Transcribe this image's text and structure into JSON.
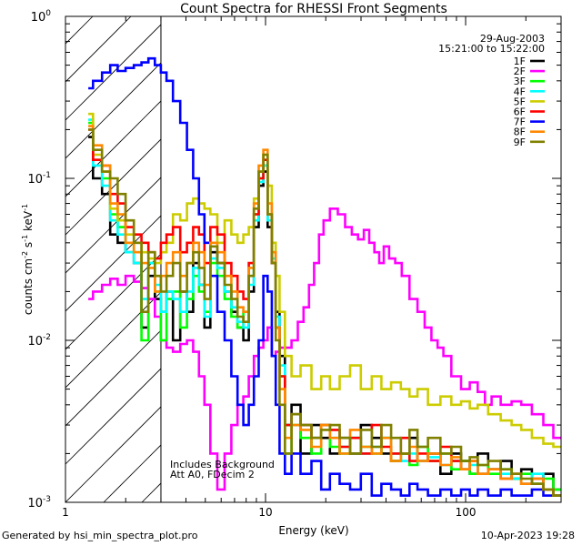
{
  "footer": {
    "generator": "Generated by hsi_min_spectra_plot.pro",
    "timestamp": "10-Apr-2023 19:28"
  },
  "chart_data": {
    "type": "line",
    "title": "Count Spectra for RHESSI Front Segments",
    "xlabel": "Energy (keV)",
    "ylabel": "counts cm-2 s-1 keV-1",
    "xscale": "log",
    "yscale": "log",
    "xlim": [
      1,
      300
    ],
    "ylim": [
      0.001,
      1
    ],
    "x_ticks": [
      {
        "value": 1,
        "label": "1"
      },
      {
        "value": 10,
        "label": "10"
      },
      {
        "value": 100,
        "label": "100"
      }
    ],
    "y_ticks": [
      {
        "value": 1,
        "label": "10^0"
      },
      {
        "value": 0.1,
        "label": "10^-1"
      },
      {
        "value": 0.01,
        "label": "10^-2"
      },
      {
        "value": 0.001,
        "label": "10^-3"
      }
    ],
    "date": "29-Aug-2003",
    "time_range": "15:21:00 to 15:22:00",
    "annotations": [
      "Includes Background",
      "Att A0, FDecim 2"
    ],
    "excluded_region": {
      "from_kev": 1,
      "to_kev": 3,
      "style": "hatched"
    },
    "legend_position": "top-right",
    "series": [
      {
        "name": "1F",
        "color": "#000000",
        "x": [
          1.3,
          1.45,
          1.6,
          1.75,
          1.9,
          2.1,
          2.3,
          2.5,
          2.7,
          2.9,
          3.1,
          3.3,
          3.6,
          3.9,
          4.2,
          4.5,
          4.8,
          5.1,
          5.5,
          6,
          6.5,
          7,
          7.5,
          8,
          8.5,
          9,
          9.5,
          10,
          10.5,
          11,
          11.5,
          12,
          13,
          14,
          16,
          18,
          20,
          22,
          25,
          28,
          32,
          36,
          40,
          45,
          50,
          55,
          60,
          70,
          80,
          90,
          100,
          110,
          120,
          140,
          160,
          180,
          200,
          230,
          260,
          290
        ],
        "y": [
          0.18,
          0.1,
          0.08,
          0.045,
          0.04,
          0.035,
          0.03,
          0.012,
          0.025,
          0.018,
          0.015,
          0.02,
          0.01,
          0.02,
          0.015,
          0.03,
          0.022,
          0.012,
          0.035,
          0.03,
          0.02,
          0.015,
          0.012,
          0.01,
          0.02,
          0.05,
          0.09,
          0.11,
          0.05,
          0.03,
          0.015,
          0.008,
          0.003,
          0.004,
          0.002,
          0.003,
          0.0025,
          0.002,
          0.0025,
          0.002,
          0.003,
          0.0025,
          0.002,
          0.0018,
          0.002,
          0.0025,
          0.0018,
          0.002,
          0.0015,
          0.002,
          0.0018,
          0.0015,
          0.002,
          0.0016,
          0.0018,
          0.0014,
          0.0016,
          0.0013,
          0.0015,
          0.0012
        ]
      },
      {
        "name": "2F",
        "color": "#ff00ff",
        "x": [
          1.3,
          1.45,
          1.6,
          1.75,
          1.9,
          2.1,
          2.3,
          2.5,
          2.7,
          2.9,
          3.1,
          3.3,
          3.6,
          3.9,
          4.2,
          4.5,
          4.8,
          5.1,
          5.5,
          6,
          6.5,
          7,
          7.5,
          8,
          8.5,
          9,
          9.5,
          10,
          10.5,
          11,
          11.5,
          12,
          13,
          14,
          15,
          16,
          17,
          18,
          19,
          20,
          22,
          24,
          26,
          28,
          30,
          32,
          34,
          36,
          38,
          40,
          43,
          46,
          50,
          55,
          60,
          65,
          70,
          75,
          80,
          90,
          100,
          110,
          120,
          130,
          140,
          160,
          180,
          200,
          230,
          260,
          290
        ],
        "y": [
          0.018,
          0.02,
          0.022,
          0.024,
          0.022,
          0.025,
          0.023,
          0.021,
          0.018,
          0.014,
          0.01,
          0.009,
          0.0085,
          0.0095,
          0.01,
          0.0085,
          0.006,
          0.004,
          0.002,
          0.0012,
          0.002,
          0.003,
          0.004,
          0.0045,
          0.006,
          0.008,
          0.009,
          0.01,
          0.012,
          0.008,
          0.0085,
          0.009,
          0.009,
          0.01,
          0.013,
          0.016,
          0.022,
          0.03,
          0.045,
          0.055,
          0.065,
          0.06,
          0.05,
          0.045,
          0.042,
          0.048,
          0.04,
          0.035,
          0.03,
          0.038,
          0.032,
          0.03,
          0.025,
          0.018,
          0.015,
          0.012,
          0.01,
          0.009,
          0.008,
          0.006,
          0.005,
          0.0055,
          0.0048,
          0.004,
          0.0045,
          0.004,
          0.0042,
          0.004,
          0.0035,
          0.003,
          0.0025
        ]
      },
      {
        "name": "3F",
        "color": "#00ff00",
        "x": [
          1.3,
          1.45,
          1.6,
          1.75,
          1.9,
          2.1,
          2.3,
          2.5,
          2.7,
          2.9,
          3.1,
          3.3,
          3.6,
          3.9,
          4.2,
          4.5,
          4.8,
          5.1,
          5.5,
          6,
          6.5,
          7,
          7.5,
          8,
          8.5,
          9,
          9.5,
          10,
          10.5,
          11,
          11.5,
          12,
          13,
          14,
          16,
          18,
          20,
          22,
          25,
          28,
          32,
          36,
          40,
          45,
          50,
          55,
          60,
          70,
          80,
          90,
          100,
          110,
          120,
          140,
          160,
          180,
          200,
          230,
          260,
          290
        ],
        "y": [
          0.22,
          0.13,
          0.1,
          0.06,
          0.05,
          0.04,
          0.035,
          0.01,
          0.03,
          0.02,
          0.01,
          0.018,
          0.02,
          0.012,
          0.018,
          0.025,
          0.02,
          0.015,
          0.03,
          0.025,
          0.018,
          0.014,
          0.012,
          0.015,
          0.025,
          0.06,
          0.1,
          0.12,
          0.06,
          0.035,
          0.012,
          0.006,
          0.002,
          0.003,
          0.0025,
          0.002,
          0.003,
          0.0022,
          0.002,
          0.0025,
          0.0022,
          0.002,
          0.0025,
          0.0018,
          0.002,
          0.0017,
          0.0022,
          0.0018,
          0.002,
          0.0016,
          0.0018,
          0.0015,
          0.0017,
          0.0015,
          0.0016,
          0.0014,
          0.0015,
          0.0013,
          0.0014,
          0.0012
        ]
      },
      {
        "name": "4F",
        "color": "#00ffff",
        "x": [
          1.3,
          1.45,
          1.6,
          1.75,
          1.9,
          2.1,
          2.3,
          2.5,
          2.7,
          2.9,
          3.1,
          3.3,
          3.6,
          3.9,
          4.2,
          4.5,
          4.8,
          5.1,
          5.5,
          6,
          6.5,
          7,
          7.5,
          8,
          8.5,
          9,
          9.5,
          10,
          10.5,
          11,
          11.5,
          12,
          13,
          14,
          16,
          18,
          20,
          22,
          25,
          28,
          32,
          36,
          40,
          45,
          50,
          55,
          60,
          70,
          80,
          90,
          100,
          110,
          120,
          140,
          160,
          180,
          200,
          230,
          260,
          290
        ],
        "y": [
          0.23,
          0.12,
          0.09,
          0.055,
          0.045,
          0.035,
          0.03,
          0.018,
          0.03,
          0.022,
          0.015,
          0.02,
          0.018,
          0.015,
          0.02,
          0.028,
          0.022,
          0.014,
          0.032,
          0.028,
          0.02,
          0.016,
          0.013,
          0.012,
          0.022,
          0.055,
          0.095,
          0.12,
          0.055,
          0.032,
          0.014,
          0.007,
          0.003,
          0.0035,
          0.003,
          0.0025,
          0.003,
          0.0025,
          0.0022,
          0.0025,
          0.002,
          0.0022,
          0.0025,
          0.002,
          0.0018,
          0.002,
          0.0018,
          0.0019,
          0.0017,
          0.0018,
          0.0016,
          0.0017,
          0.0015,
          0.0016,
          0.0015,
          0.0014,
          0.0013,
          0.0015,
          0.0012,
          0.0011
        ]
      },
      {
        "name": "5F",
        "color": "#cccc00",
        "x": [
          1.3,
          1.45,
          1.6,
          1.75,
          1.9,
          2.1,
          2.3,
          2.5,
          2.7,
          2.9,
          3.1,
          3.3,
          3.6,
          3.9,
          4.2,
          4.5,
          4.8,
          5.1,
          5.5,
          6,
          6.5,
          7,
          7.5,
          8,
          8.5,
          9,
          9.5,
          10,
          10.5,
          11,
          11.5,
          12,
          13,
          14,
          16,
          18,
          20,
          22,
          25,
          28,
          32,
          36,
          40,
          45,
          50,
          55,
          60,
          70,
          80,
          90,
          100,
          110,
          120,
          140,
          160,
          180,
          200,
          230,
          260,
          290
        ],
        "y": [
          0.25,
          0.14,
          0.11,
          0.065,
          0.055,
          0.045,
          0.04,
          0.035,
          0.032,
          0.03,
          0.035,
          0.04,
          0.06,
          0.055,
          0.07,
          0.075,
          0.07,
          0.065,
          0.06,
          0.04,
          0.055,
          0.045,
          0.04,
          0.045,
          0.05,
          0.075,
          0.11,
          0.14,
          0.09,
          0.04,
          0.025,
          0.015,
          0.008,
          0.006,
          0.007,
          0.005,
          0.006,
          0.005,
          0.006,
          0.007,
          0.005,
          0.006,
          0.005,
          0.0055,
          0.005,
          0.0045,
          0.005,
          0.004,
          0.0045,
          0.004,
          0.0042,
          0.0038,
          0.004,
          0.0035,
          0.0032,
          0.003,
          0.0028,
          0.0025,
          0.0023,
          0.0022
        ]
      },
      {
        "name": "6F",
        "color": "#ff0000",
        "x": [
          1.3,
          1.45,
          1.6,
          1.75,
          1.9,
          2.1,
          2.3,
          2.5,
          2.7,
          2.9,
          3.1,
          3.3,
          3.6,
          3.9,
          4.2,
          4.5,
          4.8,
          5.1,
          5.5,
          6,
          6.5,
          7,
          7.5,
          8,
          8.5,
          9,
          9.5,
          10,
          10.5,
          11,
          11.5,
          12,
          13,
          14,
          16,
          18,
          20,
          22,
          25,
          28,
          32,
          36,
          40,
          45,
          50,
          55,
          60,
          70,
          80,
          90,
          100,
          110,
          120,
          140,
          160,
          180,
          200,
          230,
          260,
          290
        ],
        "y": [
          0.2,
          0.13,
          0.12,
          0.08,
          0.07,
          0.05,
          0.045,
          0.04,
          0.035,
          0.032,
          0.04,
          0.045,
          0.05,
          0.035,
          0.04,
          0.05,
          0.045,
          0.03,
          0.05,
          0.045,
          0.03,
          0.025,
          0.02,
          0.018,
          0.03,
          0.06,
          0.1,
          0.13,
          0.06,
          0.03,
          0.012,
          0.006,
          0.003,
          0.0035,
          0.003,
          0.0025,
          0.003,
          0.0028,
          0.0022,
          0.0025,
          0.002,
          0.003,
          0.0022,
          0.002,
          0.0025,
          0.0018,
          0.002,
          0.0018,
          0.0022,
          0.0018,
          0.0016,
          0.0018,
          0.0015,
          0.0016,
          0.0014,
          0.0015,
          0.0013,
          0.0014,
          0.0012,
          0.0011
        ]
      },
      {
        "name": "7F",
        "color": "#0000ff",
        "x": [
          1.3,
          1.45,
          1.6,
          1.75,
          1.9,
          2.1,
          2.3,
          2.5,
          2.7,
          2.9,
          3.1,
          3.3,
          3.6,
          3.9,
          4.2,
          4.5,
          4.8,
          5.1,
          5.5,
          6,
          6.5,
          7,
          7.5,
          8,
          8.5,
          9,
          9.5,
          10,
          10.5,
          11,
          11.5,
          12,
          13,
          14,
          16,
          18,
          20,
          22,
          25,
          28,
          32,
          36,
          40,
          45,
          50,
          55,
          60,
          70,
          80,
          90,
          100,
          110,
          120,
          140,
          160,
          180,
          200,
          230,
          260,
          290
        ],
        "y": [
          0.36,
          0.4,
          0.45,
          0.5,
          0.46,
          0.48,
          0.5,
          0.52,
          0.55,
          0.5,
          0.45,
          0.4,
          0.3,
          0.22,
          0.15,
          0.1,
          0.06,
          0.04,
          0.025,
          0.015,
          0.01,
          0.006,
          0.004,
          0.003,
          0.004,
          0.006,
          0.01,
          0.025,
          0.02,
          0.008,
          0.004,
          0.002,
          0.0015,
          0.002,
          0.0015,
          0.0018,
          0.0012,
          0.0015,
          0.0013,
          0.0012,
          0.0015,
          0.0011,
          0.0013,
          0.0012,
          0.0011,
          0.0013,
          0.0012,
          0.0011,
          0.0012,
          0.0011,
          0.0012,
          0.0011,
          0.0012,
          0.0011,
          0.0012,
          0.0011,
          0.0011,
          0.0012,
          0.0011,
          0.0011
        ]
      },
      {
        "name": "8F",
        "color": "#ff8800",
        "x": [
          1.3,
          1.45,
          1.6,
          1.75,
          1.9,
          2.1,
          2.3,
          2.5,
          2.7,
          2.9,
          3.1,
          3.3,
          3.6,
          3.9,
          4.2,
          4.5,
          4.8,
          5.1,
          5.5,
          6,
          6.5,
          7,
          7.5,
          8,
          8.5,
          9,
          9.5,
          10,
          10.5,
          11,
          11.5,
          12,
          13,
          14,
          16,
          18,
          20,
          22,
          25,
          28,
          32,
          36,
          40,
          45,
          50,
          55,
          60,
          70,
          80,
          90,
          100,
          110,
          120,
          140,
          160,
          180,
          200,
          230,
          260,
          290
        ],
        "y": [
          0.21,
          0.16,
          0.12,
          0.07,
          0.06,
          0.04,
          0.035,
          0.03,
          0.028,
          0.02,
          0.025,
          0.03,
          0.035,
          0.025,
          0.03,
          0.04,
          0.035,
          0.022,
          0.04,
          0.035,
          0.025,
          0.02,
          0.016,
          0.015,
          0.028,
          0.07,
          0.12,
          0.15,
          0.07,
          0.035,
          0.012,
          0.005,
          0.0025,
          0.003,
          0.0028,
          0.0022,
          0.003,
          0.0025,
          0.002,
          0.0028,
          0.0022,
          0.002,
          0.0025,
          0.0018,
          0.002,
          0.0022,
          0.0018,
          0.002,
          0.0017,
          0.0019,
          0.0016,
          0.0018,
          0.0015,
          0.0016,
          0.0014,
          0.0015,
          0.0013,
          0.0014,
          0.0012,
          0.0011
        ]
      },
      {
        "name": "9F",
        "color": "#808000",
        "x": [
          1.3,
          1.45,
          1.6,
          1.75,
          1.9,
          2.1,
          2.3,
          2.5,
          2.7,
          2.9,
          3.1,
          3.3,
          3.6,
          3.9,
          4.2,
          4.5,
          4.8,
          5.1,
          5.5,
          6,
          6.5,
          7,
          7.5,
          8,
          8.5,
          9,
          9.5,
          10,
          10.5,
          11,
          11.5,
          12,
          13,
          14,
          16,
          18,
          20,
          22,
          25,
          28,
          32,
          36,
          40,
          45,
          50,
          55,
          60,
          70,
          80,
          90,
          100,
          110,
          120,
          140,
          160,
          180,
          200,
          230,
          260,
          290
        ],
        "y": [
          0.2,
          0.15,
          0.11,
          0.1,
          0.08,
          0.055,
          0.04,
          0.015,
          0.035,
          0.025,
          0.02,
          0.025,
          0.03,
          0.02,
          0.03,
          0.035,
          0.028,
          0.018,
          0.038,
          0.03,
          0.022,
          0.018,
          0.014,
          0.013,
          0.025,
          0.065,
          0.11,
          0.14,
          0.06,
          0.03,
          0.01,
          0.004,
          0.002,
          0.0035,
          0.003,
          0.0025,
          0.0028,
          0.003,
          0.0025,
          0.002,
          0.0028,
          0.0022,
          0.003,
          0.0025,
          0.002,
          0.0028,
          0.0022,
          0.0025,
          0.002,
          0.0022,
          0.0018,
          0.0019,
          0.0017,
          0.0018,
          0.0016,
          0.0015,
          0.0014,
          0.0013,
          0.0012,
          0.0011
        ]
      }
    ]
  }
}
